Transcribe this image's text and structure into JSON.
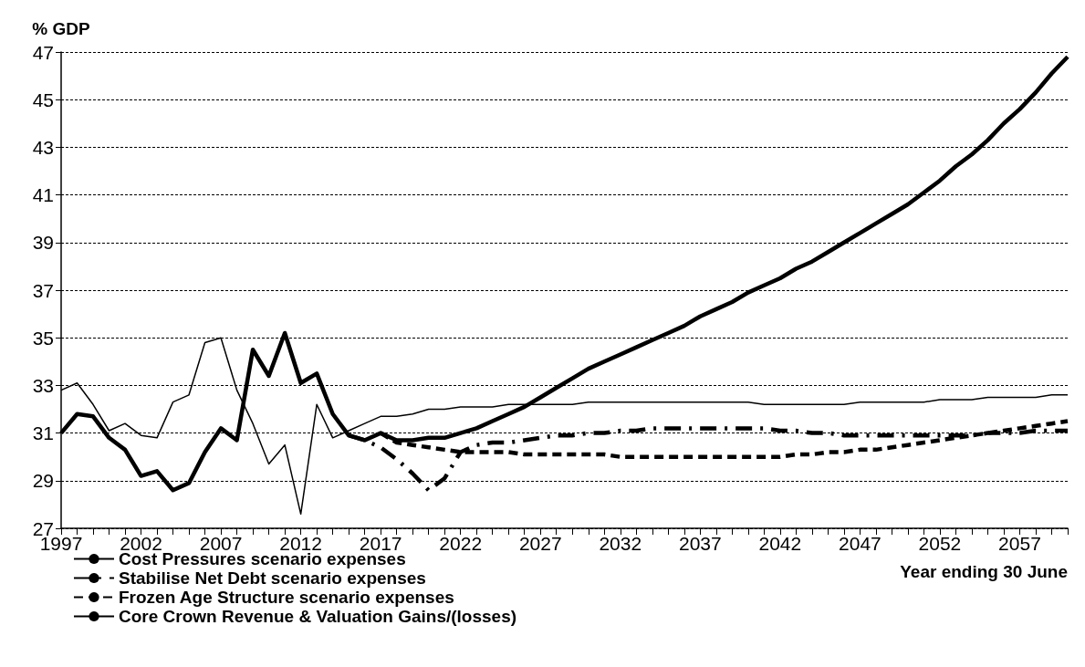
{
  "chart_data": {
    "type": "line",
    "ylabel": "% GDP",
    "xlabel": "Year ending 30 June",
    "x": [
      1997,
      1998,
      1999,
      2000,
      2001,
      2002,
      2003,
      2004,
      2005,
      2006,
      2007,
      2008,
      2009,
      2010,
      2011,
      2012,
      2013,
      2014,
      2015,
      2016,
      2017,
      2018,
      2019,
      2020,
      2021,
      2022,
      2023,
      2024,
      2025,
      2026,
      2027,
      2028,
      2029,
      2030,
      2031,
      2032,
      2033,
      2034,
      2035,
      2036,
      2037,
      2038,
      2039,
      2040,
      2041,
      2042,
      2043,
      2044,
      2045,
      2046,
      2047,
      2048,
      2049,
      2050,
      2051,
      2052,
      2053,
      2054,
      2055,
      2056,
      2057,
      2058,
      2059,
      2060
    ],
    "series": [
      {
        "name": "Cost Pressures scenario expenses",
        "color": "#000000",
        "line_style": "solid",
        "values": [
          31.0,
          31.8,
          31.7,
          30.8,
          30.3,
          29.2,
          29.4,
          28.6,
          28.9,
          30.2,
          31.2,
          30.7,
          34.5,
          33.4,
          35.2,
          33.1,
          33.5,
          31.8,
          30.9,
          30.7,
          31.0,
          30.7,
          30.7,
          30.8,
          30.8,
          31.0,
          31.2,
          31.5,
          31.8,
          32.1,
          32.5,
          32.9,
          33.3,
          33.7,
          34.0,
          34.3,
          34.6,
          34.9,
          35.2,
          35.5,
          35.9,
          36.2,
          36.5,
          36.9,
          37.2,
          37.5,
          37.9,
          38.2,
          38.6,
          39.0,
          39.4,
          39.8,
          40.2,
          40.6,
          41.1,
          41.6,
          42.2,
          42.7,
          43.3,
          44.0,
          44.6,
          45.3,
          46.1,
          46.8
        ]
      },
      {
        "name": "Stabilise Net Debt scenario expenses",
        "color": "#000000",
        "line_style": "dashdot",
        "values": [
          null,
          null,
          null,
          null,
          null,
          null,
          null,
          null,
          null,
          null,
          null,
          null,
          null,
          null,
          null,
          null,
          null,
          null,
          30.9,
          30.7,
          30.4,
          29.9,
          29.3,
          28.6,
          29.1,
          30.2,
          30.5,
          30.6,
          30.6,
          30.7,
          30.8,
          30.9,
          30.9,
          31.0,
          31.0,
          31.1,
          31.1,
          31.2,
          31.2,
          31.2,
          31.2,
          31.2,
          31.2,
          31.2,
          31.2,
          31.1,
          31.1,
          31.0,
          31.0,
          30.9,
          30.9,
          30.9,
          30.9,
          30.9,
          30.9,
          30.9,
          30.9,
          30.9,
          31.0,
          31.0,
          31.0,
          31.1,
          31.1,
          31.1
        ]
      },
      {
        "name": "Frozen Age Structure scenario expenses",
        "color": "#000000",
        "line_style": "dashed",
        "values": [
          null,
          null,
          null,
          null,
          null,
          null,
          null,
          null,
          null,
          null,
          null,
          null,
          null,
          null,
          null,
          null,
          null,
          null,
          null,
          null,
          31.0,
          30.6,
          30.5,
          30.4,
          30.3,
          30.2,
          30.2,
          30.2,
          30.2,
          30.1,
          30.1,
          30.1,
          30.1,
          30.1,
          30.1,
          30.0,
          30.0,
          30.0,
          30.0,
          30.0,
          30.0,
          30.0,
          30.0,
          30.0,
          30.0,
          30.0,
          30.1,
          30.1,
          30.2,
          30.2,
          30.3,
          30.3,
          30.4,
          30.5,
          30.6,
          30.7,
          30.8,
          30.9,
          31.0,
          31.1,
          31.2,
          31.3,
          31.4,
          31.5
        ]
      },
      {
        "name": "Core Crown Revenue & Valuation Gains/(losses)",
        "color": "#000000",
        "line_style": "solid",
        "values": [
          32.8,
          33.1,
          32.2,
          31.1,
          31.4,
          30.9,
          30.8,
          32.3,
          32.6,
          34.8,
          35.0,
          32.8,
          31.4,
          29.7,
          30.5,
          27.6,
          32.2,
          30.8,
          31.1,
          31.4,
          31.7,
          31.7,
          31.8,
          32.0,
          32.0,
          32.1,
          32.1,
          32.1,
          32.2,
          32.2,
          32.2,
          32.2,
          32.2,
          32.3,
          32.3,
          32.3,
          32.3,
          32.3,
          32.3,
          32.3,
          32.3,
          32.3,
          32.3,
          32.3,
          32.2,
          32.2,
          32.2,
          32.2,
          32.2,
          32.2,
          32.3,
          32.3,
          32.3,
          32.3,
          32.3,
          32.4,
          32.4,
          32.4,
          32.5,
          32.5,
          32.5,
          32.5,
          32.6,
          32.6
        ]
      }
    ],
    "xlim": [
      1997,
      2060
    ],
    "xticks": [
      1997,
      {
        "value": 1998,
        "label": null
      },
      {
        "value": 1999,
        "label": null
      },
      {
        "value": 2000,
        "label": null
      },
      {
        "value": 2001,
        "label": null
      },
      2002,
      {
        "value": 2003,
        "label": null
      },
      {
        "value": 2004,
        "label": null
      },
      {
        "value": 2005,
        "label": null
      },
      {
        "value": 2006,
        "label": null
      },
      2007,
      {
        "value": 2008,
        "label": null
      },
      {
        "value": 2009,
        "label": null
      },
      {
        "value": 2010,
        "label": null
      },
      {
        "value": 2011,
        "label": null
      },
      2012,
      {
        "value": 2013,
        "label": null
      },
      {
        "value": 2014,
        "label": null
      },
      {
        "value": 2015,
        "label": null
      },
      {
        "value": 2016,
        "label": null
      },
      2017,
      {
        "value": 2018,
        "label": null
      },
      {
        "value": 2019,
        "label": null
      },
      {
        "value": 2020,
        "label": null
      },
      {
        "value": 2021,
        "label": null
      },
      2022,
      {
        "value": 2023,
        "label": null
      },
      {
        "value": 2024,
        "label": null
      },
      {
        "value": 2025,
        "label": null
      },
      {
        "value": 2026,
        "label": null
      },
      2027,
      {
        "value": 2028,
        "label": null
      },
      {
        "value": 2029,
        "label": null
      },
      {
        "value": 2030,
        "label": null
      },
      {
        "value": 2031,
        "label": null
      },
      2032,
      {
        "value": 2033,
        "label": null
      },
      {
        "value": 2034,
        "label": null
      },
      {
        "value": 2035,
        "label": null
      },
      {
        "value": 2036,
        "label": null
      },
      2037,
      {
        "value": 2038,
        "label": null
      },
      {
        "value": 2039,
        "label": null
      },
      {
        "value": 2040,
        "label": null
      },
      {
        "value": 2041,
        "label": null
      },
      2042,
      {
        "value": 2043,
        "label": null
      },
      {
        "value": 2044,
        "label": null
      },
      {
        "value": 2045,
        "label": null
      },
      {
        "value": 2046,
        "label": null
      },
      2047,
      {
        "value": 2048,
        "label": null
      },
      {
        "value": 2049,
        "label": null
      },
      {
        "value": 2050,
        "label": null
      },
      {
        "value": 2051,
        "label": null
      },
      2052,
      {
        "value": 2053,
        "label": null
      },
      {
        "value": 2054,
        "label": null
      },
      {
        "value": 2055,
        "label": null
      },
      {
        "value": 2056,
        "label": null
      },
      2057,
      {
        "value": 2058,
        "label": null
      },
      {
        "value": 2059,
        "label": null
      },
      {
        "value": 2060,
        "label": null
      }
    ],
    "ylim": [
      27,
      47
    ],
    "yticks": [
      27,
      29,
      31,
      33,
      35,
      37,
      39,
      41,
      43,
      45,
      47
    ],
    "grid": "y",
    "legend": "bottom left",
    "marker": "none"
  }
}
